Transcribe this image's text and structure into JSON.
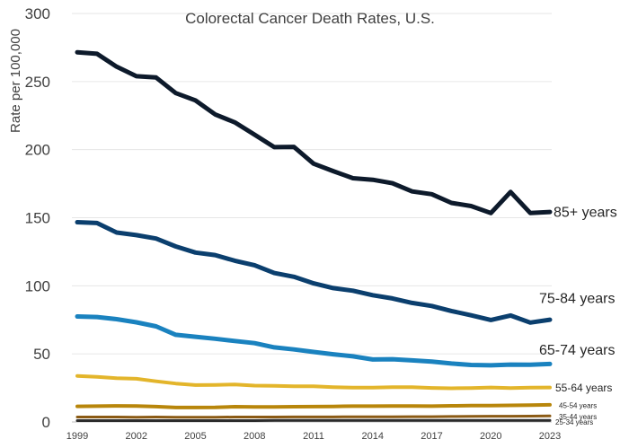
{
  "chart_data": {
    "type": "line",
    "title": "Colorectal Cancer Death Rates, U.S.",
    "xlabel": "",
    "ylabel": "Rate per 100,000",
    "ylim": [
      0,
      300
    ],
    "yticks": [
      0,
      50,
      100,
      150,
      200,
      250,
      300
    ],
    "xticks": [
      1999,
      2002,
      2005,
      2008,
      2011,
      2014,
      2017,
      2020,
      2023
    ],
    "grid": true,
    "legend": "none",
    "x": [
      1999,
      2000,
      2001,
      2002,
      2003,
      2004,
      2005,
      2006,
      2007,
      2008,
      2009,
      2010,
      2011,
      2012,
      2013,
      2014,
      2015,
      2016,
      2017,
      2018,
      2019,
      2020,
      2021,
      2022,
      2023
    ],
    "series": [
      {
        "name": "85+ years",
        "color": "#0d1a2b",
        "width": 5,
        "values": [
          271.5,
          270.4,
          260.9,
          253.9,
          253.0,
          241.5,
          236.2,
          225.9,
          220.0,
          211.0,
          201.8,
          202.0,
          189.7,
          184.2,
          179.0,
          177.9,
          175.3,
          169.3,
          167.3,
          160.9,
          158.6,
          153.4,
          168.9,
          153.5,
          154.2
        ]
      },
      {
        "name": "75-84 years",
        "color": "#0b3f6e",
        "width": 5,
        "values": [
          146.7,
          146.1,
          139.1,
          137.2,
          134.7,
          128.9,
          124.4,
          122.6,
          118.4,
          115.1,
          109.4,
          106.6,
          101.8,
          98.3,
          96.4,
          93.1,
          90.7,
          87.4,
          85.2,
          81.5,
          78.3,
          74.9,
          78.2,
          73.0,
          75.1
        ]
      },
      {
        "name": "65-74 years",
        "color": "#1a82bf",
        "width": 5,
        "values": [
          77.5,
          77.1,
          75.5,
          73.2,
          70.2,
          64.0,
          62.6,
          61.1,
          59.5,
          57.9,
          54.8,
          53.3,
          51.4,
          49.7,
          48.2,
          45.9,
          46.1,
          45.2,
          44.4,
          42.9,
          41.9,
          41.6,
          42.1,
          42.0,
          42.6
        ]
      },
      {
        "name": "55-64 years",
        "color": "#e3b52b",
        "width": 4,
        "values": [
          33.8,
          33.1,
          32.1,
          31.7,
          29.9,
          28.2,
          27.1,
          27.2,
          27.5,
          26.7,
          26.5,
          26.2,
          26.2,
          25.6,
          25.2,
          25.2,
          25.5,
          25.5,
          25.0,
          24.7,
          24.9,
          25.3,
          24.9,
          25.2,
          25.3
        ]
      },
      {
        "name": "45-54 years",
        "color": "#b8860b",
        "width": 4,
        "values": [
          11.5,
          11.6,
          11.8,
          11.7,
          11.3,
          10.6,
          10.6,
          10.7,
          11.2,
          11.0,
          11.0,
          11.2,
          11.3,
          11.4,
          11.6,
          11.6,
          11.7,
          11.7,
          11.6,
          11.9,
          12.0,
          12.0,
          12.2,
          12.4,
          12.6
        ]
      },
      {
        "name": "35-44 years",
        "color": "#8b5a14",
        "width": 3,
        "values": [
          3.6,
          3.6,
          3.6,
          3.5,
          3.6,
          3.5,
          3.5,
          3.5,
          3.6,
          3.6,
          3.6,
          3.7,
          3.7,
          3.7,
          3.8,
          3.8,
          3.8,
          3.9,
          3.9,
          4.0,
          4.1,
          4.2,
          4.2,
          4.3,
          4.4
        ]
      },
      {
        "name": "25-34 years",
        "color": "#2b2b2b",
        "width": 3,
        "values": [
          1.0,
          1.0,
          1.0,
          1.0,
          1.0,
          1.0,
          1.0,
          1.0,
          1.0,
          1.0,
          1.1,
          1.1,
          1.1,
          1.1,
          1.1,
          1.1,
          1.1,
          1.1,
          1.1,
          1.1,
          1.1,
          1.2,
          1.2,
          1.2,
          1.2
        ]
      }
    ]
  }
}
